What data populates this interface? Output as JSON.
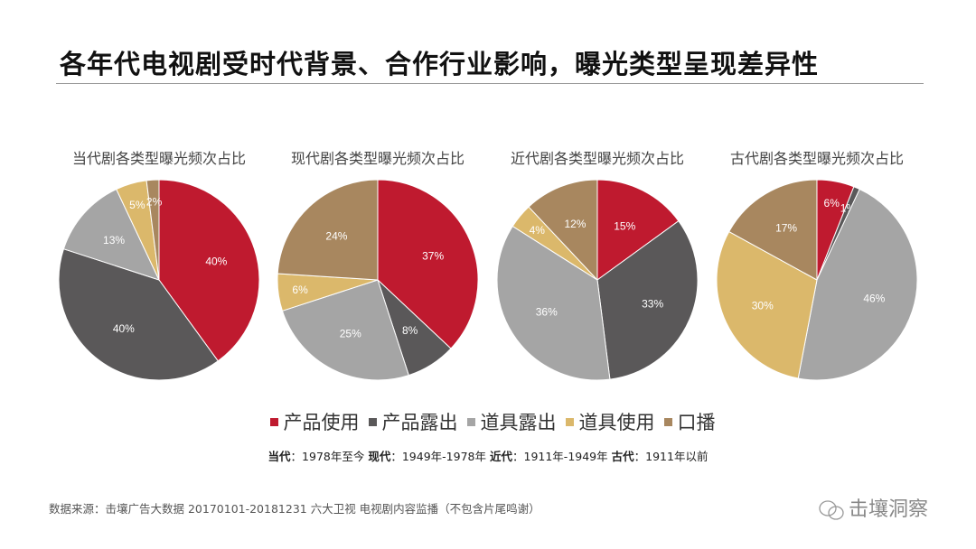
{
  "title": "各年代电视剧受时代背景、合作行业影响，曝光类型呈现差异性",
  "chart_data": {
    "type": "pie",
    "categories": [
      "产品使用",
      "产品露出",
      "道具露出",
      "道具使用",
      "口播"
    ],
    "colors": [
      "#bf1a2f",
      "#5a5859",
      "#a5a5a5",
      "#dbb86b",
      "#a8875f"
    ],
    "legend_position": "bottom",
    "charts": [
      {
        "title": "当代剧各类型曝光频次占比",
        "values": [
          40,
          40,
          13,
          5,
          2
        ],
        "labels": [
          "40%",
          "40%",
          "13%",
          "5%",
          "2%"
        ]
      },
      {
        "title": "现代剧各类型曝光频次占比",
        "values": [
          37,
          8,
          25,
          6,
          24
        ],
        "labels": [
          "37%",
          "8%",
          "25%",
          "6%",
          "24%"
        ]
      },
      {
        "title": "近代剧各类型曝光频次占比",
        "values": [
          15,
          33,
          36,
          4,
          12
        ],
        "labels": [
          "15%",
          "33%",
          "36%",
          "4%",
          "12%"
        ]
      },
      {
        "title": "古代剧各类型曝光频次占比",
        "values": [
          6,
          1,
          46,
          30,
          17
        ],
        "labels": [
          "6%",
          "1%",
          "46%",
          "30%",
          "17%"
        ]
      }
    ]
  },
  "eras": [
    {
      "name": "当代",
      "range": "：1978年至今"
    },
    {
      "name": "现代",
      "range": "：1949年-1978年"
    },
    {
      "name": "近代",
      "range": "：1911年-1949年"
    },
    {
      "name": "古代",
      "range": "：1911年以前"
    }
  ],
  "source": "数据来源：击壤广告大数据 20170101-20181231 六大卫视 电视剧内容监播（不包含片尾鸣谢）",
  "brand": "击壤洞察"
}
